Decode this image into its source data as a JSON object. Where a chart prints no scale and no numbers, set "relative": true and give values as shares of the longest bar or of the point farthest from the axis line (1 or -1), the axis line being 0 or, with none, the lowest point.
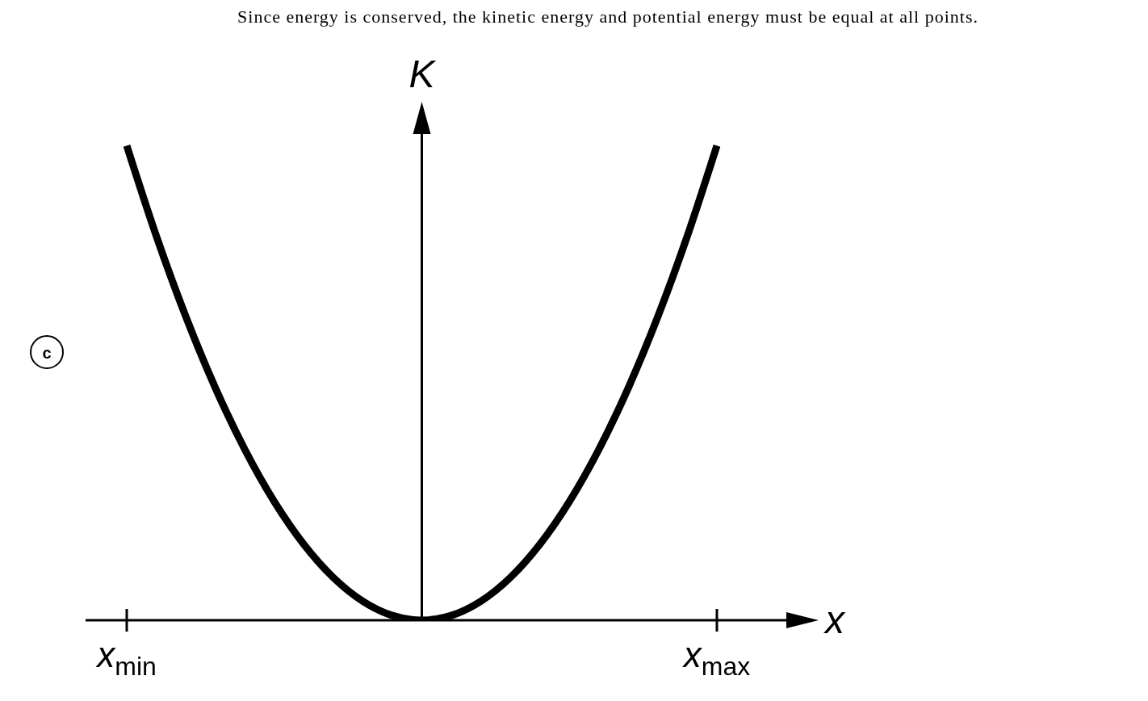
{
  "chart_data": {
    "type": "line",
    "title": "Since energy is conserved, the kinetic energy and potential energy must be equal at all points.",
    "xlabel": "x",
    "ylabel": "K",
    "annotations": [
      "c"
    ],
    "relative": true,
    "categories": [
      "x$_{min}$",
      null,
      null,
      null,
      null,
      null,
      null,
      null,
      null,
      null,
      null,
      null,
      null,
      null,
      null,
      null,
      null,
      null,
      null,
      null,
      "x$_{max}$"
    ],
    "series": [
      {
        "color": "#000000",
        "values": [
          1,
          0.81,
          0.64,
          0.49,
          0.36,
          0.25,
          0.16,
          0.09,
          0.04,
          0.01,
          0,
          0.01,
          0.04,
          0.09,
          0.16,
          0.25,
          0.36,
          0.49,
          0.64,
          0.81,
          1
        ]
      }
    ],
    "grid": false,
    "legend": false,
    "marker": "none",
    "line_style": "solid"
  }
}
